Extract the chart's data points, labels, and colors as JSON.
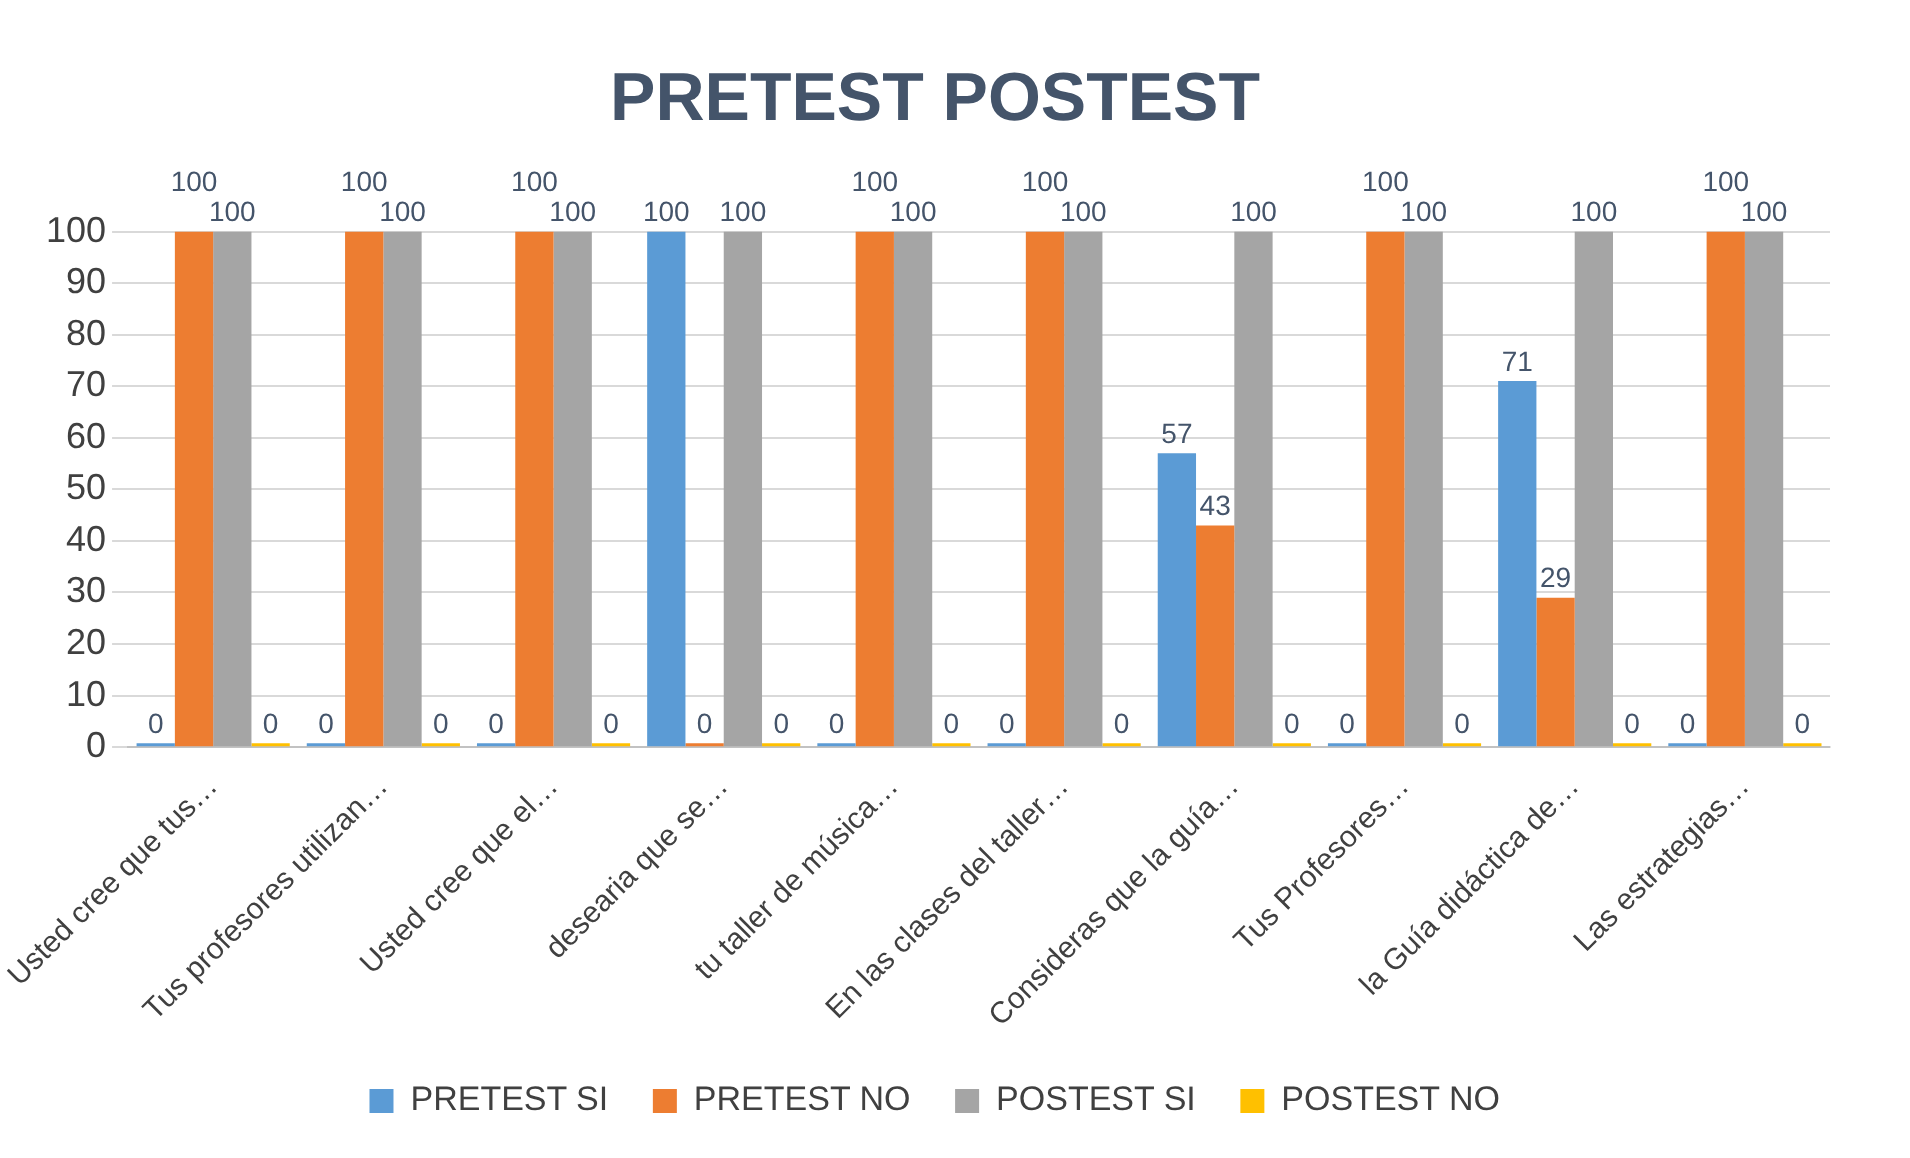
{
  "chart_data": {
    "type": "bar",
    "title": "PRETEST POSTEST",
    "categories": [
      "Usted cree que tus…",
      "Tus profesores utilizan…",
      "Usted cree que el…",
      "desearia que se…",
      "tu taller de música…",
      "En las clases del taller…",
      "Consideras que la guía…",
      "Tus Profesores…",
      "la Guía didáctica de…",
      "Las estrategias…"
    ],
    "series": [
      {
        "name": "PRETEST SI",
        "color": "#5b9bd5",
        "values": [
          0,
          0,
          0,
          100,
          0,
          0,
          57,
          0,
          71,
          0
        ]
      },
      {
        "name": "PRETEST NO",
        "color": "#ed7d31",
        "values": [
          100,
          100,
          100,
          0,
          100,
          100,
          43,
          100,
          29,
          100
        ]
      },
      {
        "name": "POSTEST SI",
        "color": "#a5a5a5",
        "values": [
          100,
          100,
          100,
          100,
          100,
          100,
          100,
          100,
          100,
          100
        ]
      },
      {
        "name": "POSTEST NO",
        "color": "#ffc000",
        "values": [
          0,
          0,
          0,
          0,
          0,
          0,
          0,
          0,
          0,
          0
        ]
      }
    ],
    "ylim": [
      0,
      100
    ],
    "yticks": [
      0,
      10,
      20,
      30,
      40,
      50,
      60,
      70,
      80,
      90,
      100
    ],
    "grid": "y",
    "legend": "bottom",
    "data_labels": true
  }
}
